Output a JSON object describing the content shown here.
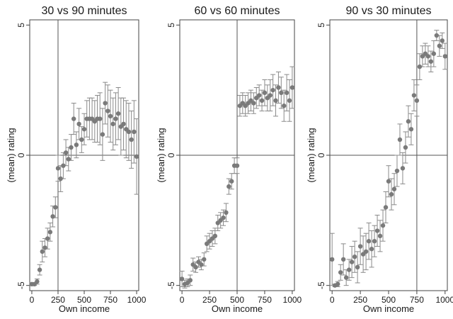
{
  "chart_data": [
    {
      "type": "scatter",
      "title": "30 vs 90 minutes",
      "xlabel": "Own income",
      "ylabel": "(mean) rating",
      "xlim": [
        -20,
        1020
      ],
      "ylim": [
        -5.2,
        5.2
      ],
      "x_ticks": [
        0,
        250,
        500,
        750,
        1000
      ],
      "y_ticks": [
        -5,
        0,
        5
      ],
      "x_tick_labels": [
        "0",
        "250",
        "500",
        "750",
        "1000"
      ],
      "y_tick_labels": [
        "-5",
        "0",
        "5"
      ],
      "reference_lines": {
        "x": 250,
        "y": 0
      },
      "marker_color": "#7a7a7a",
      "errorbar_color": "#8a8a8a",
      "points": [
        {
          "x": 0,
          "y": -4.95,
          "lo": -5.0,
          "hi": -4.9
        },
        {
          "x": 25,
          "y": -4.95,
          "lo": -5.0,
          "hi": -4.9
        },
        {
          "x": 50,
          "y": -4.85,
          "lo": -4.95,
          "hi": -4.75
        },
        {
          "x": 75,
          "y": -4.4,
          "lo": -4.6,
          "hi": -4.2
        },
        {
          "x": 100,
          "y": -3.7,
          "lo": -4.1,
          "hi": -3.3
        },
        {
          "x": 125,
          "y": -3.55,
          "lo": -3.9,
          "hi": -3.2
        },
        {
          "x": 150,
          "y": -3.2,
          "lo": -3.6,
          "hi": -2.8
        },
        {
          "x": 175,
          "y": -2.95,
          "lo": -3.3,
          "hi": -2.6
        },
        {
          "x": 200,
          "y": -2.35,
          "lo": -2.75,
          "hi": -1.95
        },
        {
          "x": 225,
          "y": -2.0,
          "lo": -2.4,
          "hi": -1.6
        },
        {
          "x": 250,
          "y": -0.5,
          "lo": -1.0,
          "hi": 0.0
        },
        {
          "x": 275,
          "y": -0.9,
          "lo": -1.4,
          "hi": -0.4
        },
        {
          "x": 300,
          "y": -0.4,
          "lo": -0.9,
          "hi": 0.1
        },
        {
          "x": 325,
          "y": 0.1,
          "lo": -0.4,
          "hi": 0.6
        },
        {
          "x": 350,
          "y": -0.15,
          "lo": -0.6,
          "hi": 0.3
        },
        {
          "x": 375,
          "y": 0.3,
          "lo": -0.2,
          "hi": 0.8
        },
        {
          "x": 400,
          "y": 1.4,
          "lo": 0.8,
          "hi": 2.0
        },
        {
          "x": 425,
          "y": 0.4,
          "lo": -0.1,
          "hi": 0.9
        },
        {
          "x": 450,
          "y": 1.2,
          "lo": 0.6,
          "hi": 1.8
        },
        {
          "x": 475,
          "y": 0.6,
          "lo": 0.1,
          "hi": 1.1
        },
        {
          "x": 500,
          "y": 1.0,
          "lo": 0.4,
          "hi": 1.6
        },
        {
          "x": 525,
          "y": 1.4,
          "lo": 0.7,
          "hi": 2.1
        },
        {
          "x": 550,
          "y": 1.4,
          "lo": 0.6,
          "hi": 2.2
        },
        {
          "x": 575,
          "y": 1.4,
          "lo": 0.6,
          "hi": 2.2
        },
        {
          "x": 600,
          "y": 1.3,
          "lo": 0.5,
          "hi": 2.1
        },
        {
          "x": 625,
          "y": 1.4,
          "lo": 0.5,
          "hi": 2.3
        },
        {
          "x": 650,
          "y": 1.4,
          "lo": 0.4,
          "hi": 2.4
        },
        {
          "x": 675,
          "y": 0.8,
          "lo": -0.2,
          "hi": 1.8
        },
        {
          "x": 700,
          "y": 2.0,
          "lo": 1.2,
          "hi": 2.8
        },
        {
          "x": 725,
          "y": 1.7,
          "lo": 0.7,
          "hi": 2.7
        },
        {
          "x": 750,
          "y": 1.5,
          "lo": 0.5,
          "hi": 2.5
        },
        {
          "x": 775,
          "y": 1.2,
          "lo": 0.2,
          "hi": 2.2
        },
        {
          "x": 800,
          "y": 1.4,
          "lo": 0.4,
          "hi": 2.4
        },
        {
          "x": 825,
          "y": 1.6,
          "lo": 0.6,
          "hi": 2.6
        },
        {
          "x": 850,
          "y": 1.1,
          "lo": 0.0,
          "hi": 2.2
        },
        {
          "x": 875,
          "y": 1.2,
          "lo": 0.2,
          "hi": 2.2
        },
        {
          "x": 900,
          "y": 1.0,
          "lo": -0.1,
          "hi": 2.1
        },
        {
          "x": 925,
          "y": 0.9,
          "lo": -0.2,
          "hi": 2.0
        },
        {
          "x": 950,
          "y": 0.6,
          "lo": -0.5,
          "hi": 1.7
        },
        {
          "x": 975,
          "y": 0.9,
          "lo": -0.3,
          "hi": 2.1
        },
        {
          "x": 1000,
          "y": -0.05,
          "lo": -1.5,
          "hi": 1.4
        }
      ]
    },
    {
      "type": "scatter",
      "title": "60 vs 60 minutes",
      "xlabel": "Own income",
      "ylabel": "(mean) rating",
      "xlim": [
        -20,
        1020
      ],
      "ylim": [
        -5.2,
        5.2
      ],
      "x_ticks": [
        0,
        250,
        500,
        750,
        1000
      ],
      "y_ticks": [
        -5,
        0,
        5
      ],
      "x_tick_labels": [
        "0",
        "250",
        "500",
        "750",
        "1000"
      ],
      "y_tick_labels": [
        "-5",
        "0",
        "5"
      ],
      "reference_lines": {
        "x": 500,
        "y": 0
      },
      "marker_color": "#7a7a7a",
      "errorbar_color": "#8a8a8a",
      "points": [
        {
          "x": 0,
          "y": -4.75,
          "lo": -5.05,
          "hi": -4.45
        },
        {
          "x": 25,
          "y": -4.95,
          "lo": -5.1,
          "hi": -4.8
        },
        {
          "x": 50,
          "y": -4.9,
          "lo": -5.05,
          "hi": -4.75
        },
        {
          "x": 75,
          "y": -4.8,
          "lo": -5.0,
          "hi": -4.6
        },
        {
          "x": 100,
          "y": -4.2,
          "lo": -4.45,
          "hi": -3.95
        },
        {
          "x": 125,
          "y": -4.3,
          "lo": -4.5,
          "hi": -4.1
        },
        {
          "x": 150,
          "y": -4.1,
          "lo": -4.3,
          "hi": -3.9
        },
        {
          "x": 175,
          "y": -4.2,
          "lo": -4.4,
          "hi": -4.0
        },
        {
          "x": 200,
          "y": -4.0,
          "lo": -4.25,
          "hi": -3.75
        },
        {
          "x": 225,
          "y": -3.4,
          "lo": -3.7,
          "hi": -3.1
        },
        {
          "x": 250,
          "y": -3.3,
          "lo": -3.6,
          "hi": -3.0
        },
        {
          "x": 275,
          "y": -3.2,
          "lo": -3.5,
          "hi": -2.9
        },
        {
          "x": 300,
          "y": -3.1,
          "lo": -3.4,
          "hi": -2.8
        },
        {
          "x": 325,
          "y": -2.6,
          "lo": -2.9,
          "hi": -2.3
        },
        {
          "x": 350,
          "y": -2.5,
          "lo": -2.8,
          "hi": -2.2
        },
        {
          "x": 375,
          "y": -2.4,
          "lo": -2.7,
          "hi": -2.1
        },
        {
          "x": 400,
          "y": -2.2,
          "lo": -2.55,
          "hi": -1.85
        },
        {
          "x": 425,
          "y": -1.2,
          "lo": -1.5,
          "hi": -0.9
        },
        {
          "x": 450,
          "y": -1.0,
          "lo": -1.3,
          "hi": -0.7
        },
        {
          "x": 475,
          "y": -0.4,
          "lo": -0.7,
          "hi": -0.1
        },
        {
          "x": 500,
          "y": -0.4,
          "lo": -0.7,
          "hi": -0.1
        },
        {
          "x": 525,
          "y": 1.9,
          "lo": 1.5,
          "hi": 2.3
        },
        {
          "x": 550,
          "y": 2.0,
          "lo": 1.6,
          "hi": 2.4
        },
        {
          "x": 575,
          "y": 1.9,
          "lo": 1.5,
          "hi": 2.3
        },
        {
          "x": 600,
          "y": 2.0,
          "lo": 1.6,
          "hi": 2.4
        },
        {
          "x": 625,
          "y": 2.1,
          "lo": 1.7,
          "hi": 2.5
        },
        {
          "x": 650,
          "y": 2.0,
          "lo": 1.6,
          "hi": 2.4
        },
        {
          "x": 675,
          "y": 2.2,
          "lo": 1.8,
          "hi": 2.6
        },
        {
          "x": 700,
          "y": 2.3,
          "lo": 1.9,
          "hi": 2.7
        },
        {
          "x": 725,
          "y": 2.1,
          "lo": 1.7,
          "hi": 2.5
        },
        {
          "x": 750,
          "y": 2.4,
          "lo": 1.9,
          "hi": 2.9
        },
        {
          "x": 775,
          "y": 2.2,
          "lo": 1.7,
          "hi": 2.7
        },
        {
          "x": 800,
          "y": 2.3,
          "lo": 1.7,
          "hi": 2.9
        },
        {
          "x": 825,
          "y": 2.5,
          "lo": 1.9,
          "hi": 3.1
        },
        {
          "x": 850,
          "y": 2.1,
          "lo": 1.5,
          "hi": 2.7
        },
        {
          "x": 875,
          "y": 2.6,
          "lo": 2.0,
          "hi": 3.2
        },
        {
          "x": 900,
          "y": 2.4,
          "lo": 1.8,
          "hi": 3.0
        },
        {
          "x": 925,
          "y": 1.9,
          "lo": 1.3,
          "hi": 2.5
        },
        {
          "x": 950,
          "y": 2.4,
          "lo": 1.7,
          "hi": 3.1
        },
        {
          "x": 975,
          "y": 2.1,
          "lo": 1.3,
          "hi": 2.9
        },
        {
          "x": 1000,
          "y": 2.6,
          "lo": 1.8,
          "hi": 3.4
        }
      ]
    },
    {
      "type": "scatter",
      "title": "90 vs 30 minutes",
      "xlabel": "Own income",
      "ylabel": "(mean) rating",
      "xlim": [
        -20,
        1020
      ],
      "ylim": [
        -5.2,
        5.2
      ],
      "x_ticks": [
        0,
        250,
        500,
        750,
        1000
      ],
      "y_ticks": [
        -5,
        0,
        5
      ],
      "x_tick_labels": [
        "0",
        "250",
        "500",
        "750",
        "1000"
      ],
      "y_tick_labels": [
        "-5",
        "0",
        "5"
      ],
      "reference_lines": {
        "x": 750,
        "y": 0
      },
      "marker_color": "#7a7a7a",
      "errorbar_color": "#8a8a8a",
      "points": [
        {
          "x": 0,
          "y": -4.0,
          "lo": -5.0,
          "hi": -3.0
        },
        {
          "x": 25,
          "y": -5.0,
          "lo": -5.05,
          "hi": -4.95
        },
        {
          "x": 50,
          "y": -4.95,
          "lo": -5.05,
          "hi": -4.85
        },
        {
          "x": 75,
          "y": -4.5,
          "lo": -4.8,
          "hi": -4.2
        },
        {
          "x": 100,
          "y": -4.0,
          "lo": -4.6,
          "hi": -3.4
        },
        {
          "x": 125,
          "y": -4.7,
          "lo": -5.0,
          "hi": -4.4
        },
        {
          "x": 150,
          "y": -4.4,
          "lo": -4.8,
          "hi": -4.0
        },
        {
          "x": 175,
          "y": -4.1,
          "lo": -4.7,
          "hi": -3.5
        },
        {
          "x": 200,
          "y": -3.9,
          "lo": -4.5,
          "hi": -3.3
        },
        {
          "x": 225,
          "y": -4.3,
          "lo": -4.9,
          "hi": -3.7
        },
        {
          "x": 250,
          "y": -3.5,
          "lo": -4.2,
          "hi": -2.8
        },
        {
          "x": 275,
          "y": -3.8,
          "lo": -4.5,
          "hi": -3.1
        },
        {
          "x": 300,
          "y": -3.7,
          "lo": -4.4,
          "hi": -3.0
        },
        {
          "x": 325,
          "y": -3.3,
          "lo": -4.0,
          "hi": -2.6
        },
        {
          "x": 350,
          "y": -3.6,
          "lo": -4.3,
          "hi": -2.9
        },
        {
          "x": 375,
          "y": -3.3,
          "lo": -3.9,
          "hi": -2.7
        },
        {
          "x": 400,
          "y": -2.9,
          "lo": -3.5,
          "hi": -2.3
        },
        {
          "x": 425,
          "y": -3.1,
          "lo": -3.7,
          "hi": -2.5
        },
        {
          "x": 450,
          "y": -2.7,
          "lo": -3.3,
          "hi": -2.1
        },
        {
          "x": 475,
          "y": -2.0,
          "lo": -2.6,
          "hi": -1.4
        },
        {
          "x": 500,
          "y": -1.0,
          "lo": -1.6,
          "hi": -0.4
        },
        {
          "x": 525,
          "y": -1.5,
          "lo": -2.1,
          "hi": -0.9
        },
        {
          "x": 550,
          "y": -1.3,
          "lo": -1.9,
          "hi": -0.7
        },
        {
          "x": 575,
          "y": -0.6,
          "lo": -1.2,
          "hi": 0.0
        },
        {
          "x": 600,
          "y": 0.6,
          "lo": 0.0,
          "hi": 1.2
        },
        {
          "x": 625,
          "y": -0.5,
          "lo": -1.1,
          "hi": 0.1
        },
        {
          "x": 650,
          "y": 0.3,
          "lo": -0.3,
          "hi": 0.9
        },
        {
          "x": 675,
          "y": 1.3,
          "lo": 0.7,
          "hi": 1.9
        },
        {
          "x": 700,
          "y": 1.0,
          "lo": 0.4,
          "hi": 1.6
        },
        {
          "x": 725,
          "y": 2.3,
          "lo": 1.7,
          "hi": 2.9
        },
        {
          "x": 750,
          "y": 2.1,
          "lo": 1.5,
          "hi": 2.7
        },
        {
          "x": 775,
          "y": 3.4,
          "lo": 2.9,
          "hi": 3.9
        },
        {
          "x": 800,
          "y": 3.8,
          "lo": 3.4,
          "hi": 4.2
        },
        {
          "x": 825,
          "y": 3.9,
          "lo": 3.5,
          "hi": 4.3
        },
        {
          "x": 850,
          "y": 3.8,
          "lo": 3.4,
          "hi": 4.2
        },
        {
          "x": 875,
          "y": 3.6,
          "lo": 3.2,
          "hi": 4.0
        },
        {
          "x": 900,
          "y": 3.9,
          "lo": 3.4,
          "hi": 4.4
        },
        {
          "x": 925,
          "y": 4.6,
          "lo": 4.4,
          "hi": 4.8
        },
        {
          "x": 950,
          "y": 4.2,
          "lo": 3.8,
          "hi": 4.6
        },
        {
          "x": 975,
          "y": 4.4,
          "lo": 4.1,
          "hi": 4.7
        },
        {
          "x": 1000,
          "y": 3.8,
          "lo": 3.3,
          "hi": 4.3
        }
      ]
    }
  ]
}
